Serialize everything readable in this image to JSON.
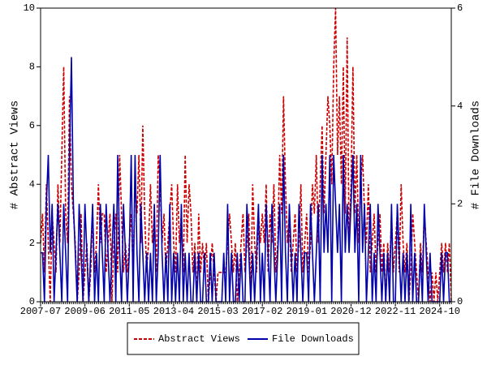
{
  "chart_data": {
    "type": "line",
    "ylabel": "# Abstract Views",
    "y2label": "# File Downloads",
    "categories": [
      "2007-07",
      null,
      null,
      null,
      null,
      null,
      null,
      null,
      null,
      null,
      null,
      null,
      null,
      null,
      null,
      null,
      null,
      null,
      null,
      null,
      null,
      null,
      null,
      "2009-06",
      null,
      null,
      null,
      null,
      null,
      null,
      null,
      null,
      null,
      null,
      null,
      null,
      null,
      null,
      null,
      null,
      null,
      null,
      null,
      null,
      null,
      null,
      "2011-05",
      null,
      null,
      null,
      null,
      null,
      null,
      null,
      null,
      null,
      null,
      null,
      null,
      null,
      null,
      null,
      null,
      null,
      null,
      null,
      null,
      null,
      null,
      "2013-04",
      null,
      null,
      null,
      null,
      null,
      null,
      null,
      null,
      null,
      null,
      null,
      null,
      null,
      null,
      null,
      null,
      null,
      null,
      null,
      null,
      null,
      null,
      "2015-03",
      null,
      null,
      null,
      null,
      null,
      null,
      null,
      null,
      null,
      null,
      null,
      null,
      null,
      null,
      null,
      null,
      null,
      null,
      null,
      null,
      null,
      null,
      "2017-02",
      null,
      null,
      null,
      null,
      null,
      null,
      null,
      null,
      null,
      null,
      null,
      null,
      null,
      null,
      null,
      null,
      null,
      null,
      null,
      null,
      null,
      null,
      "2019-01",
      null,
      null,
      null,
      null,
      null,
      null,
      null,
      null,
      null,
      null,
      null,
      null,
      null,
      null,
      null,
      null,
      null,
      null,
      null,
      null,
      null,
      null,
      "2020-12",
      null,
      null,
      null,
      null,
      null,
      null,
      null,
      null,
      null,
      null,
      null,
      null,
      null,
      null,
      null,
      null,
      null,
      null,
      null,
      null,
      null,
      null,
      "2022-11",
      null,
      null,
      null,
      null,
      null,
      null,
      null,
      null,
      null,
      null,
      null,
      null,
      null,
      null,
      null,
      null,
      null,
      null,
      null,
      null,
      null,
      null,
      "2024-10",
      null,
      null,
      null,
      null,
      null,
      null
    ],
    "series": [
      {
        "name": "Abstract Views",
        "color": "#cc0000",
        "dash": true,
        "values": [
          2,
          3,
          1,
          4,
          2,
          0,
          3,
          2,
          1,
          4,
          2,
          5,
          8,
          3,
          2,
          7,
          4,
          3,
          2,
          0,
          1,
          3,
          0,
          1,
          2,
          0,
          1,
          3,
          1,
          2,
          4,
          2,
          3,
          3,
          1,
          2,
          3,
          0,
          2,
          3,
          1,
          5,
          3,
          1,
          2,
          1,
          2,
          3,
          1,
          4,
          3,
          5,
          2,
          6,
          3,
          1,
          2,
          4,
          2,
          3,
          1,
          5,
          4,
          2,
          3,
          1,
          2,
          3,
          4,
          2,
          1,
          4,
          2,
          3,
          1,
          5,
          2,
          4,
          3,
          1,
          2,
          0,
          3,
          1,
          2,
          1,
          2,
          0,
          1,
          2,
          1,
          0,
          1,
          1,
          1,
          1,
          1,
          2,
          3,
          2,
          1,
          2,
          0,
          1,
          2,
          3,
          1,
          2,
          3,
          0,
          4,
          2,
          1,
          3,
          2,
          3,
          2,
          4,
          1,
          3,
          2,
          4,
          1,
          2,
          5,
          3,
          7,
          4,
          2,
          3,
          1,
          2,
          3,
          1,
          2,
          4,
          1,
          2,
          3,
          1,
          2,
          4,
          3,
          5,
          2,
          4,
          6,
          3,
          5,
          7,
          6,
          4,
          8,
          10,
          5,
          7,
          4,
          8,
          3,
          9,
          2,
          4,
          8,
          3,
          5,
          2,
          4,
          5,
          3,
          2,
          4,
          1,
          2,
          3,
          1,
          2,
          3,
          1,
          2,
          0,
          2,
          1,
          3,
          1,
          2,
          3,
          1,
          4,
          2,
          1,
          2,
          0,
          1,
          3,
          2,
          1,
          0,
          2,
          1,
          3,
          2,
          1,
          0,
          1,
          0,
          1,
          0,
          1,
          2,
          1,
          2,
          1,
          2,
          0
        ]
      },
      {
        "name": "File Downloads",
        "color": "#0000aa",
        "axis": "y2",
        "values": [
          1,
          1,
          0,
          2,
          3,
          1,
          2,
          0,
          1,
          2,
          1,
          0,
          2,
          1,
          0,
          3,
          5,
          2,
          1,
          0,
          2,
          1,
          0,
          2,
          1,
          0,
          1,
          2,
          0,
          1,
          0,
          2,
          1,
          0,
          2,
          1,
          0,
          1,
          2,
          0,
          3,
          1,
          0,
          2,
          1,
          0,
          1,
          3,
          0,
          3,
          1,
          0,
          2,
          1,
          0,
          1,
          0,
          1,
          0,
          2,
          0,
          1,
          3,
          1,
          0,
          1,
          0,
          2,
          0,
          1,
          0,
          1,
          0,
          2,
          0,
          1,
          0,
          1,
          0,
          0,
          1,
          0,
          1,
          0,
          0,
          1,
          0,
          0,
          1,
          0,
          1,
          0,
          0,
          0,
          0,
          1,
          0,
          2,
          0,
          1,
          0,
          0,
          1,
          0,
          1,
          0,
          0,
          2,
          1,
          0,
          1,
          0,
          1,
          2,
          0,
          1,
          0,
          2,
          1,
          0,
          2,
          1,
          0,
          1,
          2,
          0,
          3,
          1,
          0,
          2,
          1,
          0,
          1,
          0,
          2,
          1,
          0,
          1,
          1,
          0,
          2,
          1,
          0,
          1,
          2,
          0,
          3,
          1,
          2,
          1,
          3,
          0,
          3,
          2,
          1,
          2,
          0,
          3,
          1,
          2,
          1,
          2,
          3,
          1,
          2,
          0,
          3,
          1,
          2,
          0,
          1,
          2,
          0,
          1,
          0,
          2,
          1,
          0,
          1,
          0,
          1,
          0,
          2,
          0,
          0,
          2,
          1,
          0,
          1,
          0,
          1,
          0,
          2,
          0,
          1,
          0,
          0,
          1,
          0,
          2,
          1,
          0,
          1,
          0,
          0,
          0,
          0,
          0,
          1,
          0,
          1,
          1,
          0,
          0
        ]
      }
    ],
    "ylim": [
      0,
      10
    ],
    "yticks": [
      0,
      2,
      4,
      6,
      8,
      10
    ],
    "y2lim": [
      0,
      6
    ],
    "y2ticks": [
      0,
      2,
      4,
      6
    ],
    "grid": false,
    "legend": "bottom"
  }
}
